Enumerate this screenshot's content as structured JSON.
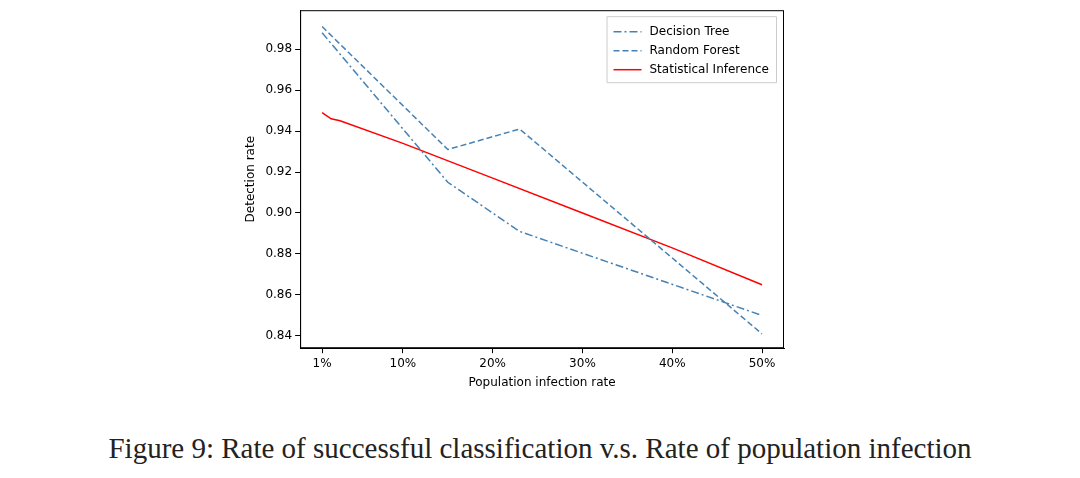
{
  "chart_data": {
    "type": "line",
    "caption": "Figure 9: Rate of successful classification v.s. Rate of population infection",
    "x_label": "Population infection rate",
    "y_label": "Detection rate",
    "xlim": [
      -1.45,
      52.45
    ],
    "ylim": [
      0.834,
      0.999
    ],
    "xticks": [
      {
        "value": 1,
        "label": "1%"
      },
      {
        "value": 10,
        "label": "10%"
      },
      {
        "value": 20,
        "label": "20%"
      },
      {
        "value": 30,
        "label": "30%"
      },
      {
        "value": 40,
        "label": "40%"
      },
      {
        "value": 50,
        "label": "50%"
      }
    ],
    "yticks": [
      0.84,
      0.86,
      0.88,
      {
        "value": 0.9,
        "label": "0.90"
      },
      0.92,
      0.94,
      0.96,
      0.98
    ],
    "grid": false,
    "legend": "upper right",
    "series": [
      {
        "name": "Decision Tree",
        "color": "#4682b4",
        "line_style": "dashdot",
        "x": [
          1,
          15,
          23,
          50
        ],
        "values": [
          0.988,
          0.915,
          0.891,
          0.85
        ]
      },
      {
        "name": "Random Forest",
        "color": "#4682b4",
        "line_style": "dashed",
        "x": [
          1,
          15,
          23,
          50
        ],
        "values": [
          0.991,
          0.931,
          0.941,
          0.841
        ]
      },
      {
        "name": "Statistical Inference",
        "color": "#ff0000",
        "line_style": "solid",
        "x": [
          1,
          2,
          3,
          10,
          20,
          30,
          40,
          50
        ],
        "values": [
          0.949,
          0.946,
          0.945,
          0.934,
          0.917,
          0.9,
          0.883,
          0.865
        ]
      }
    ]
  }
}
